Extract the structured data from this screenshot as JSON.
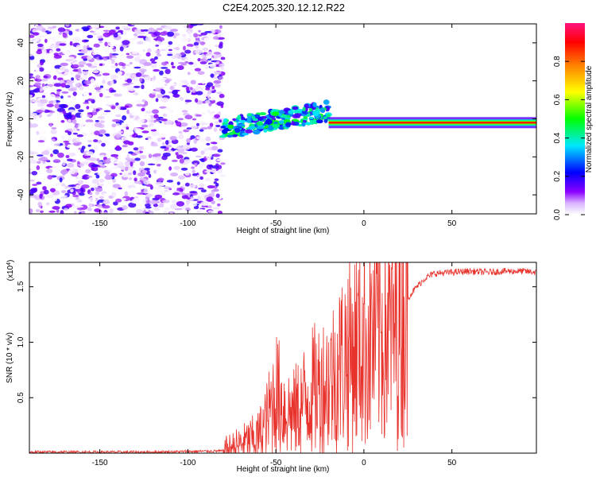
{
  "title": "C2E4.2025.320.12.12.R22",
  "colors": {
    "snr_line": "#e8322c",
    "axis": "#000000"
  },
  "chart_data": [
    {
      "type": "heatmap",
      "title": "C2E4.2025.320.12.12.R22",
      "xlabel": "Height of straight line (km)",
      "ylabel": "Frequency (Hz)",
      "xlim": [
        -190,
        98
      ],
      "ylim": [
        -50,
        50
      ],
      "xticks": [
        -150,
        -100,
        -50,
        0,
        50
      ],
      "yticks": [
        -40,
        -20,
        0,
        20,
        40
      ],
      "colorbar": {
        "label": "Normalized spectral amplitude",
        "range": [
          0,
          1
        ],
        "ticks": [
          0.0,
          0.2,
          0.4,
          0.6,
          0.8
        ],
        "colormap": [
          "#ffffff",
          "#8a00ff",
          "#0000ff",
          "#00e8ff",
          "#00ff00",
          "#ffff00",
          "#ff8000",
          "#ff0000",
          "#ff1493"
        ]
      },
      "regions": [
        {
          "name": "noise",
          "x_range": [
            -190,
            -80
          ],
          "y_range": [
            -50,
            50
          ],
          "amplitude": "0.1-0.3"
        },
        {
          "name": "signal-rising",
          "x_range": [
            -80,
            -20
          ],
          "y_center_start": -5,
          "y_center_end": 4,
          "amplitude": "0.3-0.5"
        },
        {
          "name": "signal-stable",
          "x_range": [
            -20,
            98
          ],
          "y_center": -2,
          "amplitude": "0.6-0.95"
        }
      ]
    },
    {
      "type": "line",
      "xlabel": "Height of straight line (km)",
      "ylabel": "SNR (10 * v/v)",
      "scale_label": "(x10",
      "scale_exponent": "4",
      "xlim": [
        -190,
        98
      ],
      "ylim": [
        0,
        1.72
      ],
      "xticks": [
        -150,
        -100,
        -50,
        0,
        50
      ],
      "yticks": [
        0.5,
        1.0,
        1.5
      ],
      "series": [
        {
          "name": "SNR",
          "x": [
            -190,
            -120,
            -80,
            -70,
            -60,
            -55,
            -50,
            -45,
            -40,
            -35,
            -30,
            -25,
            -20,
            -15,
            -10,
            -5,
            0,
            5,
            10,
            15,
            20,
            25,
            30,
            35,
            40,
            50,
            60,
            70,
            80,
            90,
            98
          ],
          "y": [
            0.01,
            0.01,
            0.02,
            0.08,
            0.15,
            0.3,
            0.55,
            0.4,
            0.35,
            0.45,
            0.55,
            0.6,
            0.65,
            0.75,
            0.9,
            0.95,
            1.0,
            1.05,
            1.1,
            1.1,
            1.2,
            1.4,
            1.5,
            1.58,
            1.62,
            1.63,
            1.64,
            1.63,
            1.64,
            1.64,
            1.63
          ]
        }
      ]
    }
  ]
}
